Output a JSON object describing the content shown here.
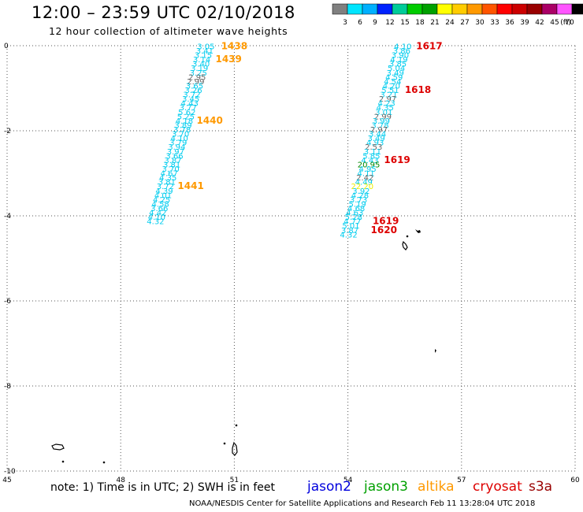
{
  "title": "12:00 – 23:59 UTC 02/10/2018",
  "subtitle": "12 hour collection of altimeter wave heights",
  "note": "note:  1) Time is in UTC;  2) SWH is in feet",
  "credit": "NOAA/NESDIS Center for Satellite Applications and Research    Feb 11 13:28:04 UTC 2018",
  "satellites": [
    {
      "name": "jason2",
      "color": "#0000dd"
    },
    {
      "name": "jason3",
      "color": "#00a000"
    },
    {
      "name": "altika",
      "color": "#ff9900"
    },
    {
      "name": "cryosat",
      "color": "#dd0000"
    },
    {
      "name": "s3a",
      "color": "#990000"
    }
  ],
  "colorbar": {
    "labels": [
      "3",
      "6",
      "9",
      "12",
      "15",
      "18",
      "21",
      "24",
      "27",
      "30",
      "33",
      "36",
      "39",
      "42",
      "45",
      "70",
      "(ft)"
    ],
    "colors": [
      "#808080",
      "#00e5ff",
      "#00b0ff",
      "#0022ff",
      "#00cc99",
      "#00cc00",
      "#00a000",
      "#ffff00",
      "#ffcc00",
      "#ff9900",
      "#ff5500",
      "#ff0000",
      "#cc0000",
      "#990000",
      "#aa0066",
      "#ff55ff",
      "#000000"
    ]
  },
  "chart_data": {
    "type": "scatter",
    "xlabel": "",
    "ylabel": "",
    "xlim": [
      45,
      60
    ],
    "ylim": [
      -10,
      0
    ],
    "xticks": [
      45,
      48,
      51,
      54,
      57,
      60
    ],
    "yticks": [
      0,
      -2,
      -4,
      -6,
      -8,
      -10
    ],
    "grid": true,
    "series": [
      {
        "name": "west track",
        "points": [
          {
            "x": 50.25,
            "y": -0.02,
            "v": "3.05",
            "c": "#00ccee"
          },
          {
            "x": 50.22,
            "y": -0.27,
            "v": "3.41",
            "c": "#00ccee"
          },
          {
            "x": 50.18,
            "y": -0.52,
            "v": "3.15",
            "c": "#00ccee"
          },
          {
            "x": 50.14,
            "y": -0.77,
            "v": "3.14",
            "c": "#00ccee"
          },
          {
            "x": 50.12,
            "y": -1.02,
            "v": "3.40",
            "c": "#00ccee"
          },
          {
            "x": 50.08,
            "y": -1.27,
            "v": "3.19",
            "c": "#00ccee"
          },
          {
            "x": 50.05,
            "y": -1.52,
            "v": "3.25",
            "c": "#00ccee"
          },
          {
            "x": 50.02,
            "y": -1.77,
            "v": "2.95",
            "c": "#666666"
          },
          {
            "x": 49.98,
            "y": -2.02,
            "v": "2.99",
            "c": "#666666"
          },
          {
            "x": 49.95,
            "y": -2.27,
            "v": "3.65",
            "c": "#00ccee"
          },
          {
            "x": 49.92,
            "y": -2.52,
            "v": "3.26",
            "c": "#00ccee"
          },
          {
            "x": 49.88,
            "y": -2.77,
            "v": "3.72",
            "c": "#00ccee"
          },
          {
            "x": 49.85,
            "y": -3.02,
            "v": "3.45",
            "c": "#00ccee"
          },
          {
            "x": 49.82,
            "y": -3.27,
            "v": "4.43",
            "c": "#00ccee"
          },
          {
            "x": 49.78,
            "y": -3.52,
            "v": "3.77",
            "c": "#00ccee"
          },
          {
            "x": 49.75,
            "y": -3.77,
            "v": "5.62",
            "c": "#00ccee"
          },
          {
            "x": 49.72,
            "y": -4.02,
            "v": "5.25",
            "c": "#00ccee"
          },
          {
            "x": 49.68,
            "y": -4.27,
            "v": "4.18",
            "c": "#00ccee"
          },
          {
            "x": 49.65,
            "y": -4.52,
            "v": "3.89",
            "c": "#00ccee"
          },
          {
            "x": 49.62,
            "y": -4.77,
            "v": "3.78",
            "c": "#00ccee"
          },
          {
            "x": 49.58,
            "y": -5.02,
            "v": "3.70",
            "c": "#00ccee"
          },
          {
            "x": 49.55,
            "y": -5.27,
            "v": "4.10",
            "c": "#00ccee"
          },
          {
            "x": 49.52,
            "y": -5.52,
            "v": "3.79",
            "c": "#00ccee"
          },
          {
            "x": 49.48,
            "y": -5.77,
            "v": "3.94",
            "c": "#00ccee"
          },
          {
            "x": 49.45,
            "y": -6.02,
            "v": "3.97",
            "c": "#00ccee"
          },
          {
            "x": 49.42,
            "y": -6.27,
            "v": "3.66",
            "c": "#00ccee"
          },
          {
            "x": 49.38,
            "y": -6.52,
            "v": "3.87",
            "c": "#00ccee"
          },
          {
            "x": 49.35,
            "y": -6.77,
            "v": "3.81",
            "c": "#00ccee"
          },
          {
            "x": 49.32,
            "y": -7.02,
            "v": "3.70",
            "c": "#00ccee"
          },
          {
            "x": 49.28,
            "y": -7.27,
            "v": "4.67",
            "c": "#00ccee"
          },
          {
            "x": 49.25,
            "y": -7.52,
            "v": "4.35",
            "c": "#00ccee"
          },
          {
            "x": 49.22,
            "y": -7.77,
            "v": "3.81",
            "c": "#00ccee"
          },
          {
            "x": 49.18,
            "y": -8.02,
            "v": "3.72",
            "c": "#00ccee"
          },
          {
            "x": 49.15,
            "y": -8.27,
            "v": "4.39",
            "c": "#00ccee"
          },
          {
            "x": 49.12,
            "y": -8.52,
            "v": "4.01",
            "c": "#00ccee"
          },
          {
            "x": 49.08,
            "y": -8.77,
            "v": "4.25",
            "c": "#00ccee"
          },
          {
            "x": 49.05,
            "y": -9.02,
            "v": "4.58",
            "c": "#00ccee"
          },
          {
            "x": 49.02,
            "y": -9.27,
            "v": "3.66",
            "c": "#00ccee"
          },
          {
            "x": 48.98,
            "y": -9.52,
            "v": "4.42",
            "c": "#00ccee"
          },
          {
            "x": 48.95,
            "y": -9.77,
            "v": "4.10",
            "c": "#00ccee"
          },
          {
            "x": 48.92,
            "y": -10.02,
            "v": "4.32",
            "c": "#00ccee"
          }
        ],
        "time_labels": [
          {
            "x": 51.0,
            "y": -0.02,
            "t": "1438",
            "c": "#ff9900"
          },
          {
            "x": 50.85,
            "y": -0.77,
            "t": "1439",
            "c": "#ff9900"
          },
          {
            "x": 50.35,
            "y": -4.27,
            "t": "1440",
            "c": "#ff9900"
          },
          {
            "x": 49.85,
            "y": -8.02,
            "t": "1441",
            "c": "#ff9900"
          }
        ]
      },
      {
        "name": "east track",
        "points": [
          {
            "x": 55.45,
            "y": -0.02,
            "v": "4.10",
            "c": "#00ccee"
          },
          {
            "x": 55.42,
            "y": -0.27,
            "v": "3.86",
            "c": "#00ccee"
          },
          {
            "x": 55.38,
            "y": -0.52,
            "v": "3.90",
            "c": "#00ccee"
          },
          {
            "x": 55.35,
            "y": -0.77,
            "v": "4.19",
            "c": "#00ccee"
          },
          {
            "x": 55.32,
            "y": -1.02,
            "v": "3.85",
            "c": "#00ccee"
          },
          {
            "x": 55.28,
            "y": -1.27,
            "v": "5.04",
            "c": "#00ccee"
          },
          {
            "x": 55.25,
            "y": -1.52,
            "v": "3.49",
            "c": "#00ccee"
          },
          {
            "x": 55.22,
            "y": -1.77,
            "v": "4.59",
            "c": "#00ccee"
          },
          {
            "x": 55.18,
            "y": -2.02,
            "v": "4.54",
            "c": "#00ccee"
          },
          {
            "x": 55.15,
            "y": -2.27,
            "v": "4.20",
            "c": "#00ccee"
          },
          {
            "x": 55.12,
            "y": -2.52,
            "v": "5.51",
            "c": "#00ccee"
          },
          {
            "x": 55.08,
            "y": -2.77,
            "v": "3.21",
            "c": "#00ccee"
          },
          {
            "x": 55.05,
            "y": -3.02,
            "v": "2.97",
            "c": "#666666"
          },
          {
            "x": 55.02,
            "y": -3.27,
            "v": "4.23",
            "c": "#00ccee"
          },
          {
            "x": 54.98,
            "y": -3.52,
            "v": "4.35",
            "c": "#00ccee"
          },
          {
            "x": 54.95,
            "y": -3.77,
            "v": "3.01",
            "c": "#00ccee"
          },
          {
            "x": 54.92,
            "y": -4.02,
            "v": "2.99",
            "c": "#666666"
          },
          {
            "x": 54.88,
            "y": -4.27,
            "v": "3.99",
            "c": "#00ccee"
          },
          {
            "x": 54.85,
            "y": -4.52,
            "v": "3.78",
            "c": "#00ccee"
          },
          {
            "x": 54.82,
            "y": -4.77,
            "v": "2.97",
            "c": "#666666"
          },
          {
            "x": 54.78,
            "y": -5.02,
            "v": "3.44",
            "c": "#00ccee"
          },
          {
            "x": 54.75,
            "y": -5.27,
            "v": "3.49",
            "c": "#00ccee"
          },
          {
            "x": 54.72,
            "y": -5.52,
            "v": "4.93",
            "c": "#00ccee"
          },
          {
            "x": 54.68,
            "y": -5.77,
            "v": "2.53",
            "c": "#666666"
          },
          {
            "x": 54.65,
            "y": -6.02,
            "v": "3.11",
            "c": "#00ccee"
          },
          {
            "x": 54.62,
            "y": -6.27,
            "v": "5.85",
            "c": "#00ccee"
          },
          {
            "x": 54.58,
            "y": -6.52,
            "v": "4.43",
            "c": "#00ccee"
          },
          {
            "x": 54.55,
            "y": -6.77,
            "v": "20.95",
            "c": "#008800"
          },
          {
            "x": 54.52,
            "y": -7.02,
            "v": "4.95",
            "c": "#00ccee"
          },
          {
            "x": 54.48,
            "y": -7.27,
            "v": "4.11",
            "c": "#00ccee"
          },
          {
            "x": 54.45,
            "y": -7.52,
            "v": "2.42",
            "c": "#666666"
          },
          {
            "x": 54.42,
            "y": -7.77,
            "v": "4.49",
            "c": "#00ccee"
          },
          {
            "x": 54.38,
            "y": -8.02,
            "v": "22.20",
            "c": "#eeee00"
          },
          {
            "x": 54.35,
            "y": -8.27,
            "v": "3.92",
            "c": "#00ccee"
          },
          {
            "x": 54.32,
            "y": -8.52,
            "v": "4.28",
            "c": "#00ccee"
          },
          {
            "x": 54.28,
            "y": -8.77,
            "v": "3.73",
            "c": "#00ccee"
          },
          {
            "x": 54.25,
            "y": -9.02,
            "v": "5.19",
            "c": "#00ccee"
          },
          {
            "x": 54.22,
            "y": -9.27,
            "v": "4.68",
            "c": "#00ccee"
          },
          {
            "x": 54.18,
            "y": -9.52,
            "v": "4.63",
            "c": "#00ccee"
          },
          {
            "x": 54.15,
            "y": -9.77,
            "v": "5.28",
            "c": "#00ccee"
          },
          {
            "x": 54.12,
            "y": -10.02,
            "v": "4.77",
            "c": "#00ccee"
          },
          {
            "x": 54.08,
            "y": -10.27,
            "v": "5.01",
            "c": "#00ccee"
          },
          {
            "x": 54.05,
            "y": -10.52,
            "v": "3.87",
            "c": "#00ccee"
          },
          {
            "x": 54.02,
            "y": -10.77,
            "v": "4.32",
            "c": "#00ccee"
          }
        ],
        "time_labels": [
          {
            "x": 56.15,
            "y": -0.02,
            "t": "1617",
            "c": "#dd0000"
          },
          {
            "x": 55.85,
            "y": -2.52,
            "t": "1618",
            "c": "#dd0000"
          },
          {
            "x": 55.3,
            "y": -6.52,
            "t": "1619",
            "c": "#dd0000"
          },
          {
            "x": 55.0,
            "y": -10.02,
            "t": "1619",
            "c": "#dd0000"
          },
          {
            "x": 54.95,
            "y": -10.52,
            "t": "1620",
            "c": "#dd0000"
          }
        ]
      }
    ]
  }
}
